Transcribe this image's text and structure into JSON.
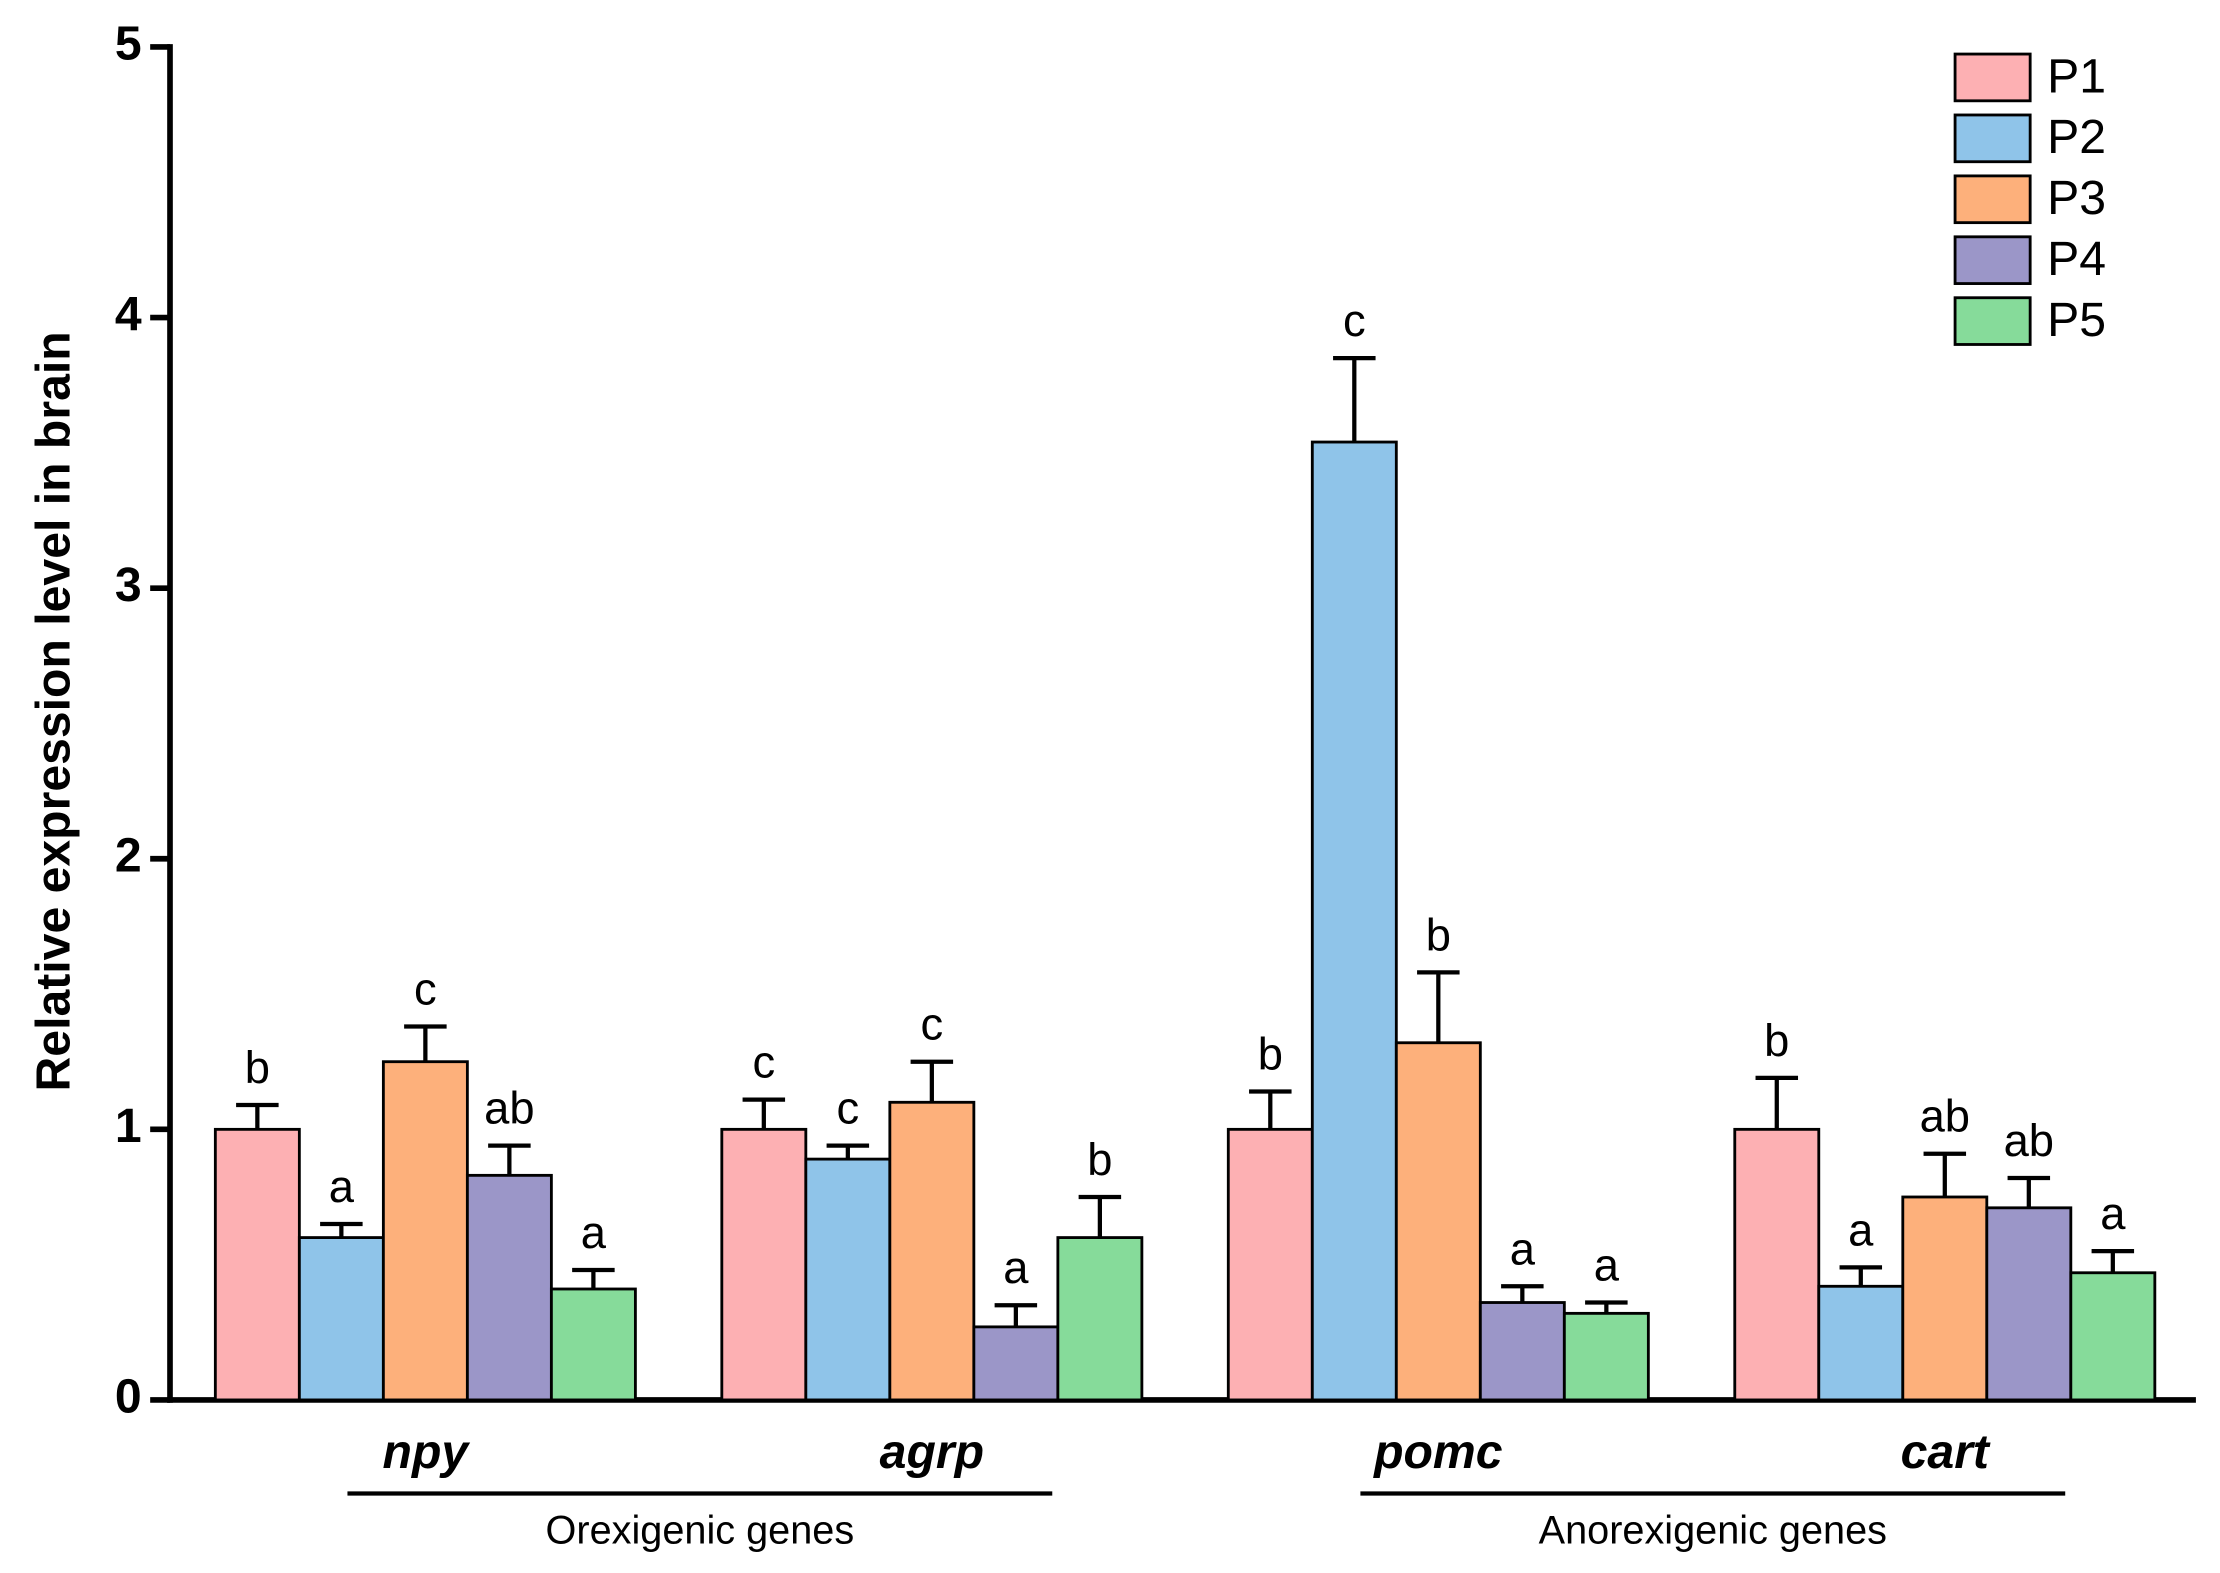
{
  "chart_data": {
    "type": "bar",
    "y_label": "Relative expression level in brain",
    "categories": [
      "npy",
      "agrp",
      "pomc",
      "cart"
    ],
    "category_groups": [
      {
        "name": "Orexigenic genes",
        "categories": [
          "npy",
          "agrp"
        ]
      },
      {
        "name": "Anorexigenic genes",
        "categories": [
          "pomc",
          "cart"
        ]
      }
    ],
    "series": [
      {
        "name": "P1",
        "color": "#fdb0b3",
        "values": [
          1.0,
          1.0,
          1.0,
          1.0
        ],
        "errors": [
          0.09,
          0.11,
          0.14,
          0.19
        ],
        "significance": [
          "b",
          "c",
          "b",
          "b"
        ]
      },
      {
        "name": "P2",
        "color": "#8fc4e9",
        "values": [
          0.6,
          0.89,
          3.54,
          0.42
        ],
        "errors": [
          0.05,
          0.05,
          0.31,
          0.07
        ],
        "significance": [
          "a",
          "c",
          "c",
          "a"
        ]
      },
      {
        "name": "P3",
        "color": "#fdb07b",
        "values": [
          1.25,
          1.1,
          1.32,
          0.75
        ],
        "errors": [
          0.13,
          0.15,
          0.26,
          0.16
        ],
        "significance": [
          "c",
          "c",
          "b",
          "ab"
        ]
      },
      {
        "name": "P4",
        "color": "#9b96c8",
        "values": [
          0.83,
          0.27,
          0.36,
          0.71
        ],
        "errors": [
          0.11,
          0.08,
          0.06,
          0.11
        ],
        "significance": [
          "ab",
          "a",
          "a",
          "ab"
        ]
      },
      {
        "name": "P5",
        "color": "#86db9a",
        "values": [
          0.41,
          0.6,
          0.32,
          0.47
        ],
        "errors": [
          0.07,
          0.15,
          0.04,
          0.08
        ],
        "significance": [
          "a",
          "b",
          "a",
          "a"
        ]
      }
    ],
    "ylim": [
      0,
      5
    ],
    "yticks": [
      0,
      1,
      2,
      3,
      4,
      5
    ],
    "legend": "top-right"
  }
}
